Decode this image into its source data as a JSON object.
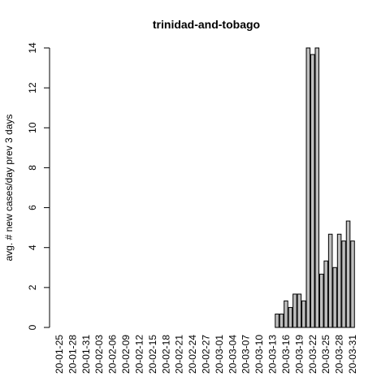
{
  "chart_data": {
    "type": "bar",
    "title": "trinidad-and-tobago",
    "ylabel": "avg. # new cases/day prev  3  days",
    "categories": [
      "20-01-25",
      null,
      null,
      "20-01-28",
      null,
      null,
      "20-01-31",
      null,
      null,
      "20-02-03",
      null,
      null,
      "20-02-06",
      null,
      null,
      "20-02-09",
      null,
      null,
      "20-02-12",
      null,
      null,
      "20-02-15",
      null,
      null,
      "20-02-18",
      null,
      null,
      "20-02-21",
      null,
      null,
      "20-02-24",
      null,
      null,
      "20-02-27",
      null,
      null,
      "20-03-01",
      null,
      null,
      "20-03-04",
      null,
      null,
      "20-03-07",
      null,
      null,
      "20-03-10",
      null,
      null,
      "20-03-13",
      null,
      null,
      "20-03-16",
      null,
      null,
      "20-03-19",
      null,
      null,
      "20-03-22",
      null,
      null,
      "20-03-25",
      null,
      null,
      "20-03-28",
      null,
      null,
      "20-03-31"
    ],
    "values": [
      0,
      0,
      0,
      0,
      0,
      0,
      0,
      0,
      0,
      0,
      0,
      0,
      0,
      0,
      0,
      0,
      0,
      0,
      0,
      0,
      0,
      0,
      0,
      0,
      0,
      0,
      0,
      0,
      0,
      0,
      0,
      0,
      0,
      0,
      0,
      0,
      0,
      0,
      0,
      0,
      0,
      0,
      0,
      0,
      0,
      0,
      0,
      0,
      0,
      0.67,
      0.67,
      1.33,
      1,
      1.67,
      1.67,
      1.33,
      14,
      13.67,
      14,
      2.67,
      3.33,
      4.67,
      3,
      4.67,
      4.33,
      5.33,
      4.33
    ],
    "color": "#bebebe",
    "ylim": [
      0,
      14
    ],
    "yticks": [
      0,
      2,
      4,
      6,
      8,
      10,
      12,
      14
    ]
  }
}
